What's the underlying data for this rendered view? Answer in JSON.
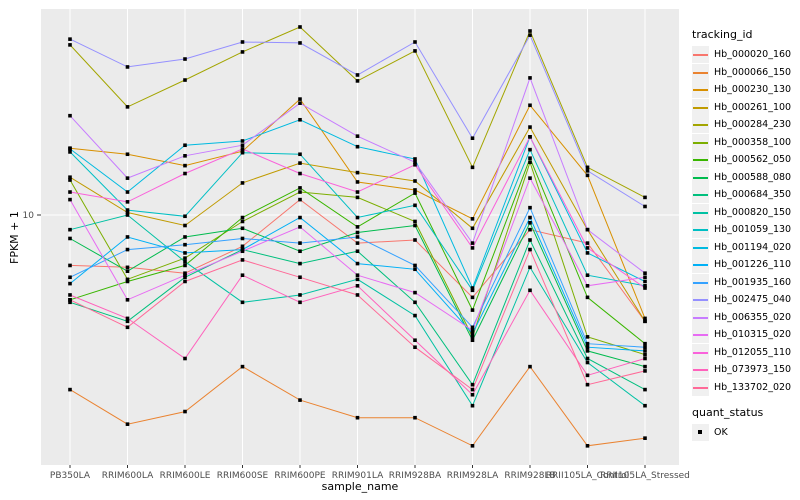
{
  "chart_data": {
    "type": "line",
    "title": "",
    "xlabel": "sample_name",
    "ylabel": "FPKM + 1",
    "y_scale": "log10",
    "y_ticks": [
      10
    ],
    "y_tick_labels": [
      "10"
    ],
    "panel_bg": "#EBEBEB",
    "grid_color": "#FFFFFF",
    "point_color": "#000000",
    "axis_text_color": "#4D4D4D",
    "legend": {
      "color_title": "tracking_id",
      "shape_title": "quant_status",
      "shape_items": [
        {
          "label": "OK"
        }
      ]
    },
    "categories": [
      "PB350LA",
      "RRIM600LA",
      "RRIM600LE",
      "RRIM600SE",
      "RRIM600PE",
      "RRIM901LA",
      "RRIM928BA",
      "RRIM928LA",
      "RRIM928LB",
      "RRII105LA_Control",
      "RRII105LA_Stressed"
    ],
    "series": [
      {
        "name": "Hb_000020_160",
        "color": "#F8766D",
        "values": [
          6.7,
          6.6,
          6.3,
          7.8,
          11.3,
          8.0,
          8.2,
          5.2,
          8.9,
          8.0,
          4.3
        ]
      },
      {
        "name": "Hb_000066_150",
        "color": "#EA8331",
        "values": [
          2.5,
          1.9,
          2.1,
          3.0,
          2.3,
          2.0,
          2.0,
          1.6,
          3.0,
          1.6,
          1.7
        ]
      },
      {
        "name": "Hb_000230_130",
        "color": "#D89000",
        "values": [
          17.0,
          16.2,
          14.8,
          16.6,
          25.1,
          13.0,
          12.2,
          9.7,
          23.9,
          13.7,
          4.4
        ]
      },
      {
        "name": "Hb_000261_100",
        "color": "#C09B00",
        "values": [
          13.5,
          10.2,
          9.2,
          12.9,
          15.1,
          14.0,
          13.1,
          9.0,
          20.1,
          8.9,
          4.3
        ]
      },
      {
        "name": "Hb_000284_230",
        "color": "#A3A500",
        "values": [
          38.6,
          23.6,
          29.2,
          36.5,
          44.5,
          29.0,
          36.8,
          14.6,
          43.1,
          14.6,
          11.5
        ]
      },
      {
        "name": "Hb_000358_100",
        "color": "#7CAE00",
        "values": [
          13.2,
          6.0,
          7.1,
          9.5,
          12.0,
          11.5,
          9.5,
          3.8,
          15.2,
          3.8,
          3.3
        ]
      },
      {
        "name": "Hb_000562_050",
        "color": "#39B600",
        "values": [
          5.1,
          5.9,
          6.7,
          9.8,
          12.4,
          9.1,
          11.9,
          4.7,
          15.7,
          5.2,
          3.6
        ]
      },
      {
        "name": "Hb_000588_080",
        "color": "#00BB4E",
        "values": [
          8.3,
          6.4,
          8.4,
          9.0,
          7.5,
          8.7,
          9.2,
          3.7,
          9.4,
          3.4,
          3.0
        ]
      },
      {
        "name": "Hb_000684_350",
        "color": "#00BF7D",
        "values": [
          5.0,
          4.3,
          6.1,
          7.6,
          6.8,
          7.5,
          5.0,
          2.6,
          8.2,
          3.2,
          2.5
        ]
      },
      {
        "name": "Hb_000820_150",
        "color": "#00C1A3",
        "values": [
          8.9,
          10.0,
          6.9,
          5.0,
          5.3,
          6.0,
          4.5,
          2.2,
          6.6,
          3.1,
          2.2
        ]
      },
      {
        "name": "Hb_001059_130",
        "color": "#00BFC4",
        "values": [
          16.5,
          10.4,
          9.9,
          16.4,
          16.2,
          9.8,
          10.8,
          5.5,
          16.8,
          6.2,
          5.7
        ]
      },
      {
        "name": "Hb_001194_020",
        "color": "#00BAE0",
        "values": [
          16.9,
          12.0,
          17.4,
          18.0,
          21.3,
          17.2,
          15.6,
          5.6,
          18.6,
          7.4,
          5.9
        ]
      },
      {
        "name": "Hb_001226_110",
        "color": "#00B0F6",
        "values": [
          5.8,
          8.4,
          7.4,
          7.6,
          9.8,
          6.8,
          6.5,
          3.9,
          9.8,
          3.5,
          3.4
        ]
      },
      {
        "name": "Hb_001935_160",
        "color": "#35A2FF",
        "values": [
          6.1,
          7.6,
          7.9,
          8.3,
          8.0,
          8.4,
          6.7,
          4.1,
          10.6,
          3.6,
          3.5
        ]
      },
      {
        "name": "Hb_002475_040",
        "color": "#9590FF",
        "values": [
          40.4,
          32.4,
          34.5,
          39.5,
          39.2,
          30.4,
          39.5,
          18.4,
          41.7,
          14.2,
          10.7
        ]
      },
      {
        "name": "Hb_006355_020",
        "color": "#C77CFF",
        "values": [
          22.0,
          13.4,
          16.0,
          17.4,
          24.3,
          18.7,
          15.2,
          8.0,
          29.7,
          8.9,
          6.3
        ]
      },
      {
        "name": "Hb_010315_020",
        "color": "#E76BF3",
        "values": [
          11.3,
          5.1,
          6.2,
          7.5,
          9.1,
          6.2,
          5.4,
          4.0,
          13.4,
          5.7,
          6.1
        ]
      },
      {
        "name": "Hb_012055_110",
        "color": "#FA62DB",
        "values": [
          12.0,
          11.1,
          13.9,
          16.9,
          13.9,
          12.0,
          14.9,
          7.7,
          18.6,
          7.7,
          5.6
        ]
      },
      {
        "name": "Hb_073973_150",
        "color": "#FF62BC",
        "values": [
          5.3,
          4.4,
          3.2,
          6.2,
          5.0,
          5.7,
          3.7,
          2.4,
          5.5,
          2.8,
          3.2
        ]
      },
      {
        "name": "Hb_133702_020",
        "color": "#FF6A98",
        "values": [
          5.1,
          4.1,
          5.9,
          7.0,
          6.1,
          5.3,
          3.5,
          2.5,
          7.6,
          2.6,
          2.9
        ]
      }
    ]
  }
}
